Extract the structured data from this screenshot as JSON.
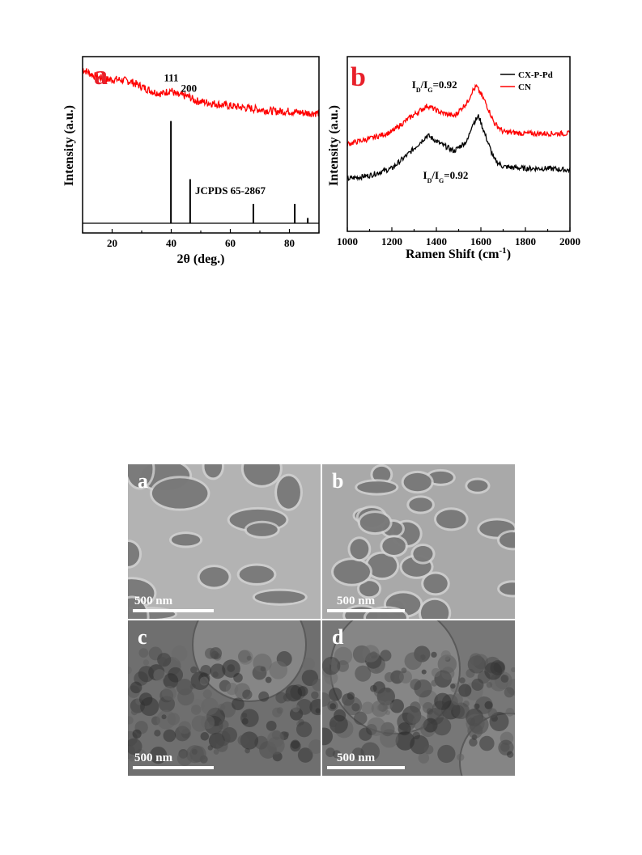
{
  "chart_data": [
    {
      "type": "line",
      "panel_label": "a",
      "xlabel": "2θ (deg.)",
      "ylabel": "Intensity (a.u.)",
      "xlim": [
        10,
        90
      ],
      "xticks": [
        20,
        40,
        60,
        80
      ],
      "yticks": [],
      "grid": false,
      "series": [
        {
          "color": "#ff0000",
          "style": "noisy-line",
          "x": [
            10,
            14,
            18,
            22,
            26,
            30,
            34,
            37,
            39.8,
            42,
            44,
            46.3,
            48,
            52,
            56,
            60,
            65,
            70,
            75,
            80,
            85,
            90
          ],
          "y": [
            0.93,
            0.89,
            0.87,
            0.87,
            0.86,
            0.83,
            0.8,
            0.79,
            0.81,
            0.78,
            0.78,
            0.77,
            0.75,
            0.74,
            0.73,
            0.72,
            0.71,
            0.7,
            0.69,
            0.69,
            0.68,
            0.68
          ]
        },
        {
          "color": "#000000",
          "style": "stick-pattern",
          "x": [
            39.9,
            46.4,
            67.8,
            81.8,
            86.2
          ],
          "y": [
            0.58,
            0.25,
            0.11,
            0.11,
            0.03
          ]
        }
      ],
      "annotations": [
        {
          "text": "111",
          "x": 40,
          "y": 0.86
        },
        {
          "text": "200",
          "x": 46,
          "y": 0.8
        },
        {
          "text": "JCPDS 65-2867",
          "x": 60,
          "y": 0.22
        }
      ]
    },
    {
      "type": "line",
      "panel_label": "b",
      "xlabel": "Ramen Shift (cm",
      "xlabel_sup": "-1",
      "xlabel_end": ")",
      "ylabel": "Intensity (a.u.)",
      "xlim": [
        1000,
        2000
      ],
      "xticks": [
        1000,
        1200,
        1400,
        1600,
        1800,
        2000
      ],
      "yticks": [],
      "grid": false,
      "legend": "top-right",
      "series": [
        {
          "name": "CX-P-Pd",
          "color": "#000000",
          "x": [
            1000,
            1100,
            1200,
            1280,
            1360,
            1420,
            1480,
            1540,
            1560,
            1590,
            1620,
            1660,
            1700,
            1800,
            1900,
            2000
          ],
          "y": [
            0.3,
            0.32,
            0.36,
            0.45,
            0.55,
            0.5,
            0.46,
            0.52,
            0.61,
            0.66,
            0.55,
            0.41,
            0.37,
            0.36,
            0.36,
            0.35
          ]
        },
        {
          "name": "CN",
          "color": "#ff0000",
          "x": [
            1000,
            1100,
            1200,
            1280,
            1360,
            1420,
            1480,
            1540,
            1560,
            1580,
            1620,
            1660,
            1700,
            1800,
            1900,
            2000
          ],
          "y": [
            0.5,
            0.53,
            0.57,
            0.65,
            0.72,
            0.68,
            0.66,
            0.74,
            0.8,
            0.83,
            0.74,
            0.62,
            0.57,
            0.56,
            0.56,
            0.56
          ]
        }
      ],
      "annotations": [
        {
          "text_main": "I",
          "sub1": "D",
          "mid": "/I",
          "sub2": "G",
          "tail": "=0.92",
          "x": 1290,
          "y": 0.82
        },
        {
          "text_main": "I",
          "sub1": "D",
          "mid": "/I",
          "sub2": "G",
          "tail": "=0.92",
          "x": 1340,
          "y": 0.3
        }
      ]
    }
  ],
  "micrographs": [
    {
      "label": "a",
      "scale": "500 nm",
      "bg": "#b3b3b3"
    },
    {
      "label": "b",
      "scale": "500 nm",
      "bg": "#a9a9a9"
    },
    {
      "label": "c",
      "scale": "500 nm",
      "bg": "#6f6f6f"
    },
    {
      "label": "d",
      "scale": "500 nm",
      "bg": "#777777"
    }
  ],
  "colors": {
    "accent_red": "#ff0000",
    "panel_letter": "#e8202a"
  }
}
